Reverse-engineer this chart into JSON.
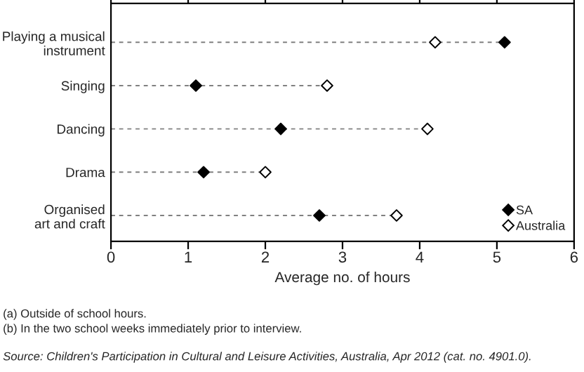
{
  "chart_data": {
    "type": "scatter",
    "orientation": "horizontal",
    "xlabel": "Average no. of hours",
    "categories": [
      "Playing a musical\ninstrument",
      "Singing",
      "Dancing",
      "Drama",
      "Organised\nart and craft"
    ],
    "series": [
      {
        "name": "SA",
        "color": "#000000",
        "values": [
          5.1,
          1.1,
          2.2,
          1.2,
          2.7
        ]
      },
      {
        "name": "Australia",
        "color": "#ffffff",
        "values": [
          4.2,
          2.8,
          4.1,
          2.0,
          3.7
        ]
      }
    ],
    "xlim": [
      0,
      6
    ],
    "xticks": [
      0,
      1,
      2,
      3,
      4,
      5,
      6
    ],
    "marker": "diamond",
    "line_style": "dashed",
    "grid": "y",
    "legend": "bottom right",
    "annotations": [
      "(a) Outside of school hours.",
      "(b) In the two school weeks immediately prior to interview.",
      "Source: Children's Participation in Cultural and Leisure Activities, Australia, Apr 2012 (cat. no. 4901.0)."
    ]
  }
}
